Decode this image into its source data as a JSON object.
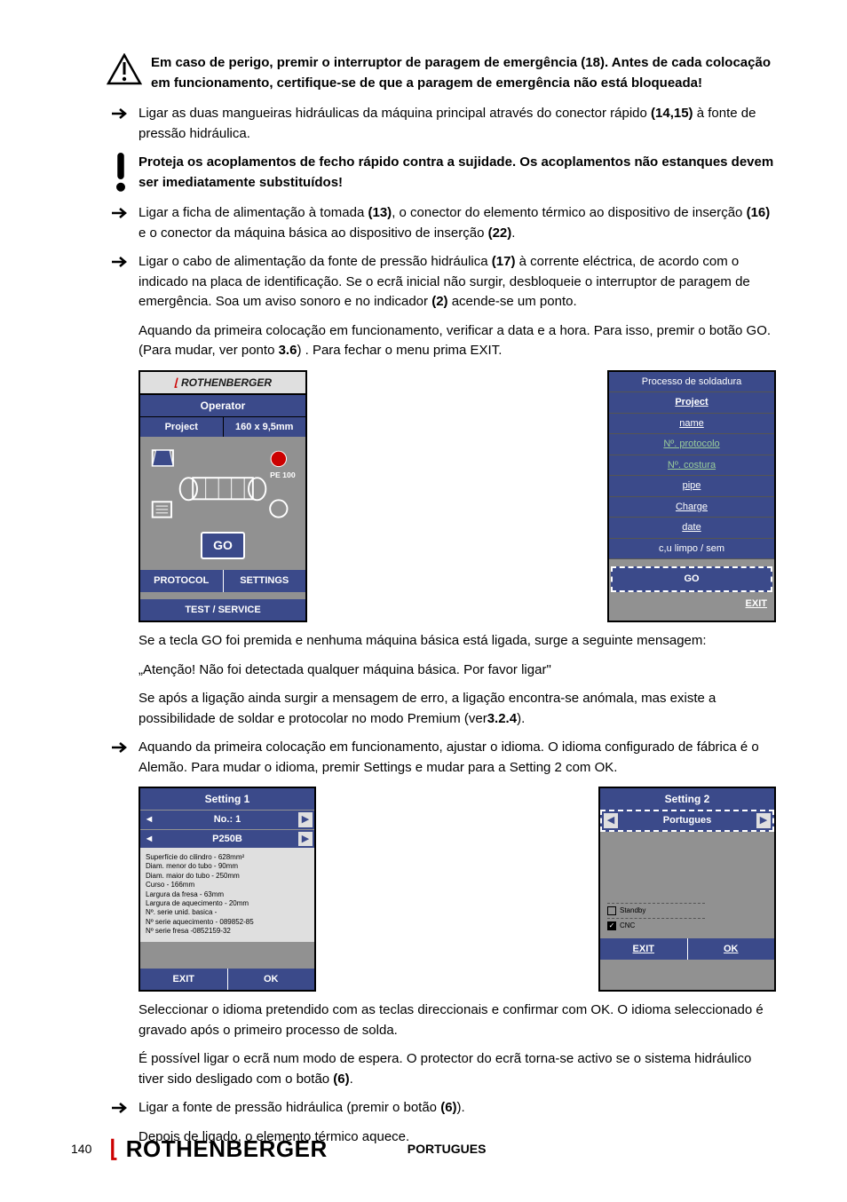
{
  "warning1": "Em caso de perigo, premir o interruptor de paragem de emergência (18). Antes de cada colocação em funcionamento, certifique-se de que a paragem de emergência não está bloqueada!",
  "bullet1_a": "Ligar as duas mangueiras hidráulicas da máquina principal através do conector rápido ",
  "bullet1_b": "(14,15)",
  "bullet1_c": " à fonte de pressão hidráulica.",
  "warning2": "Proteja os acoplamentos de fecho rápido contra a sujidade. Os acoplamentos não estanques devem ser imediatamente substituídos!",
  "bullet2_a": "Ligar a ficha de alimentação à tomada ",
  "bullet2_b": "(13)",
  "bullet2_c": ", o conector do elemento térmico ao dispositivo de inserção ",
  "bullet2_d": "(16)",
  "bullet2_e": " e o conector da máquina básica ao dispositivo de inserção ",
  "bullet2_f": "(22)",
  "bullet2_g": ".",
  "bullet3_a": "Ligar o cabo de alimentação da fonte de pressão hidráulica ",
  "bullet3_b": "(17)",
  "bullet3_c": " à corrente eléctrica, de acordo com o indicado na placa de identificação. Se o ecrã inicial não surgir, desbloqueie o interruptor de paragem de emergência. Soa um aviso sonoro e no indicador ",
  "bullet3_d": "(2)",
  "bullet3_e": " acende-se um ponto.",
  "para_go_a": "Aquando da primeira colocação em funcionamento, verificar a data e a hora. Para isso, premir o botão GO. (Para mudar, ver ponto ",
  "para_go_b": "3.6",
  "para_go_c": ") . Para fechar o menu prima EXIT.",
  "screen1": {
    "header": "ROTHENBERGER",
    "operator": "Operator",
    "project": "Project",
    "size": "160 x 9,5mm",
    "pe": "PE 100",
    "go": "GO",
    "protocol": "PROTOCOL",
    "settings": "SETTINGS",
    "test": "TEST / SERVICE"
  },
  "screen2": {
    "header": "Processo de soldadura",
    "project": "Project",
    "name": "name",
    "protocolo": "Nº. protocolo",
    "costura": "Nº. costura",
    "pipe": "pipe",
    "charge": "Charge",
    "date": "date",
    "limpo": "c,u limpo / sem",
    "go": "GO",
    "exit": "EXIT"
  },
  "para_msg1": "Se a tecla GO foi premida e nenhuma máquina básica está ligada, surge a seguinte mensagem:",
  "para_quote": "„Atenção! Não foi detectada qualquer máquina básica. Por favor ligar\"",
  "para_msg2_a": "Se após a ligação ainda surgir a mensagem de erro, a ligação encontra-se anómala, mas existe a possibilidade de soldar e protocolar no modo Premium (ver",
  "para_msg2_b": "3.2.4",
  "para_msg2_c": ").",
  "bullet4": "Aquando da primeira colocação em funcionamento, ajustar o idioma. O idioma configurado de fábrica é o Alemão. Para mudar o idioma, premir Settings e mudar para a Setting 2 com OK.",
  "setting1": {
    "title": "Setting 1",
    "no": "No.: 1",
    "model": "P250B",
    "specs": [
      "Superfície do cilindro - 628mm²",
      "Diam. menor do tubo - 90mm",
      "Diam. maior do tubo - 250mm",
      "Curso - 166mm",
      "Largura da fresa - 63mm",
      "Largura de aquecimento - 20mm",
      "Nº. serie unid. basica -",
      "Nº serie aquecimento - 089852-85",
      "Nº serie fresa -0852159-32"
    ],
    "exit": "EXIT",
    "ok": "OK"
  },
  "setting2": {
    "title": "Setting 2",
    "lang": "Portugues",
    "standby": "Standby",
    "cnc": "CNC",
    "exit": "EXIT",
    "ok": "OK"
  },
  "para_sel": "Seleccionar o idioma pretendido com as teclas direccionais e confirmar com OK. O idioma seleccionado é gravado após o primeiro processo de solda.",
  "para_ecra_a": "É possível ligar o ecrã num modo de espera. O protector do ecrã torna-se activo se o sistema hidráulico tiver sido desligado com o botão ",
  "para_ecra_b": "(6)",
  "para_ecra_c": ".",
  "bullet5_a": "Ligar a fonte de pressão hidráulica (premir o botão ",
  "bullet5_b": "(6)",
  "bullet5_c": ").",
  "para_last": "Depois de ligado, o elemento térmico aquece.",
  "footer": {
    "page": "140",
    "logo": "ROTHENBERGER",
    "lang": "PORTUGUES"
  }
}
